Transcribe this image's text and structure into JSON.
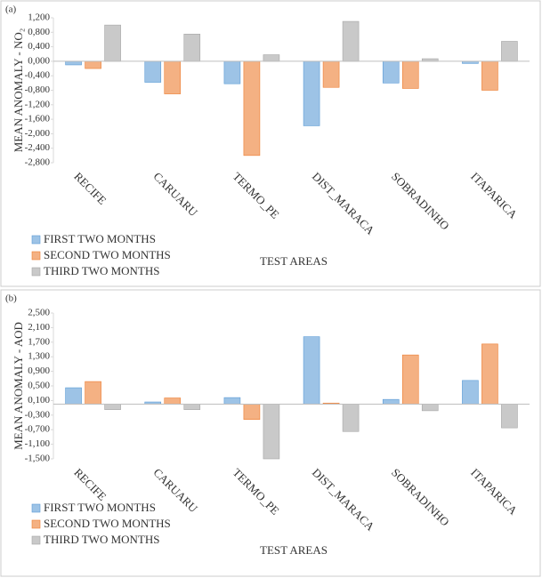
{
  "chart_data": [
    {
      "type": "bar",
      "panel_label": "(a)",
      "y_label": "MEAN ANOMALY - NO₂",
      "x_label": "TEST AREAS",
      "categories": [
        "RECIFE",
        "CARUARU",
        "TERMO_PE",
        "DIST_MARACA",
        "SOBRADINHO",
        "ITAPARICA"
      ],
      "series": [
        {
          "name": "FIRST TWO MONTHS",
          "color": "#9dc3e6",
          "values": [
            -0.1,
            -0.58,
            -0.62,
            -1.78,
            -0.6,
            -0.06
          ]
        },
        {
          "name": "SECOND TWO MONTHS",
          "color": "#f4b183",
          "values": [
            -0.2,
            -0.9,
            -2.6,
            -0.72,
            -0.75,
            -0.8
          ]
        },
        {
          "name": "THIRD TWO MONTHS",
          "color": "#c9c9c9",
          "values": [
            1.0,
            0.75,
            0.18,
            1.1,
            0.07,
            0.55
          ]
        }
      ],
      "ylim": [
        -2.8,
        1.2
      ],
      "yticks": [
        {
          "value": 1.2,
          "label": "1,200"
        },
        {
          "value": 0.8,
          "label": "0,800"
        },
        {
          "value": 0.4,
          "label": "0,400"
        },
        {
          "value": 0,
          "label": "0,000"
        },
        {
          "value": -0.4,
          "label": "-0,400"
        },
        {
          "value": -0.8,
          "label": "-0,800"
        },
        {
          "value": -1.2,
          "label": "-1,200"
        },
        {
          "value": -1.6,
          "label": "-1,600"
        },
        {
          "value": -2.0,
          "label": "-2,000"
        },
        {
          "value": -2.4,
          "label": "-2,400"
        },
        {
          "value": -2.8,
          "label": "-2,800"
        }
      ],
      "grid": false,
      "legend": "bottom-left"
    },
    {
      "type": "bar",
      "panel_label": "(b)",
      "y_label": "MEAN ANOMALY - AOD",
      "x_label": "TEST AREAS",
      "categories": [
        "RECIFE",
        "CARUARU",
        "TERMO_PE",
        "DIST_MARACA",
        "SOBRADINHO",
        "ITAPARICA"
      ],
      "series": [
        {
          "name": "FIRST TWO MONTHS",
          "color": "#9dc3e6",
          "values": [
            0.45,
            0.06,
            0.18,
            1.85,
            0.13,
            0.65
          ]
        },
        {
          "name": "SECOND TWO MONTHS",
          "color": "#f4b183",
          "values": [
            0.62,
            0.17,
            -0.42,
            0.03,
            1.35,
            1.65
          ]
        },
        {
          "name": "THIRD TWO MONTHS",
          "color": "#c9c9c9",
          "values": [
            -0.15,
            -0.15,
            -1.5,
            -0.75,
            -0.18,
            -0.65
          ]
        }
      ],
      "ylim": [
        -1.5,
        2.5
      ],
      "yticks": [
        {
          "value": 2.5,
          "label": "2,500"
        },
        {
          "value": 2.1,
          "label": "2,100"
        },
        {
          "value": 1.7,
          "label": "1,700"
        },
        {
          "value": 1.3,
          "label": "1,300"
        },
        {
          "value": 0.9,
          "label": "0,900"
        },
        {
          "value": 0.5,
          "label": "0,500"
        },
        {
          "value": 0.1,
          "label": "0,100"
        },
        {
          "value": -0.3,
          "label": "-0,300"
        },
        {
          "value": -0.7,
          "label": "-0,700"
        },
        {
          "value": -1.1,
          "label": "-1,100"
        },
        {
          "value": -1.5,
          "label": "-1,500"
        }
      ],
      "grid": false,
      "legend": "bottom-left"
    }
  ]
}
